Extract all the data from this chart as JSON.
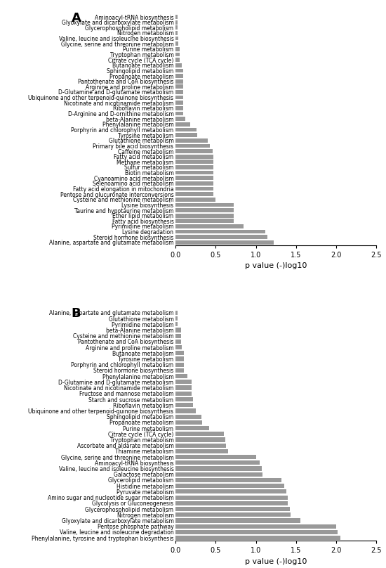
{
  "panel_A": {
    "labels": [
      "Aminoacyl-tRNA biosynthesis",
      "Glyoxylate and dicarboxylate metabolism",
      "Glycerophospholipid metabolism",
      "Nitrogen metabolism",
      "Valine, leucine and isoleucine biosynthesis",
      "Glycine, serine and threonine metabolism",
      "Purine metabolism",
      "Tryptophan metabolism",
      "Citrate cycle (TCA cycle)",
      "Butanoate metabolism",
      "Sphingolipid metabolism",
      "Propanoate metabolism",
      "Pantothenate and CoA biosynthesis",
      "Arginine and proline metabolism",
      "D-Glutamine and D-glutamate metabolism",
      "Ubiquinone and other terpenoid-quinone biosynthesis",
      "Nicotinate and nicotinamide metabolism",
      "Riboflavin metabolism",
      "D-Arginine and D-ornithine metabolism",
      "beta-Alanine metabolism",
      "Phenylalanine metabolism",
      "Porphyrin and chlorophyll metabolism",
      "Tyrosine metabolism",
      "Glutathione metabolism",
      "Primary bile acid biosynthesis",
      "Caffeine metabolism",
      "Fatty acid metabolism",
      "Methane metabolism",
      "Sulfur metabolism",
      "Biotin metabolism",
      "Cyanoamino acid metabolism",
      "Selenoamino acid metabolism",
      "Fatty acid elongation in mitochondria",
      "Pentose and glucuronate interconversions",
      "Cysteine and methionine metabolism",
      "Lysine biosynthesis",
      "Taurine and hypotaurine metabolism",
      "Ether lipid metabolism",
      "Fatty acid biosynthesis",
      "Pyrimidine metabolism",
      "Lysine degradation",
      "Steroid hormone biosynthesis",
      "Alanine, aspartate and glutamate metabolism"
    ],
    "values": [
      0.02,
      0.02,
      0.02,
      0.02,
      0.03,
      0.03,
      0.05,
      0.05,
      0.05,
      0.08,
      0.09,
      0.09,
      0.09,
      0.09,
      0.09,
      0.09,
      0.09,
      0.09,
      0.09,
      0.12,
      0.18,
      0.26,
      0.27,
      0.4,
      0.43,
      0.46,
      0.47,
      0.47,
      0.47,
      0.47,
      0.47,
      0.47,
      0.47,
      0.47,
      0.5,
      0.72,
      0.72,
      0.72,
      0.72,
      0.85,
      1.12,
      1.14,
      1.22
    ],
    "xlabel": "p value (-)log10",
    "xlim": [
      0,
      2.5
    ],
    "xticks": [
      0.0,
      0.5,
      1.0,
      1.5,
      2.0,
      2.5
    ],
    "bar_color": "#999999",
    "panel_label": "A"
  },
  "panel_B": {
    "labels": [
      "Alanine, aspartate and glutamate metabolism",
      "Glutathione metabolism",
      "Pyrimidine metabolism",
      "beta-Alanine metabolism",
      "Cysteine and methionine metabolism",
      "Pantothenate and CoA biosynthesis",
      "Arginine and proline metabolism",
      "Butanoate metabolism",
      "Tyrosine metabolism",
      "Porphyrin and chlorophyll metabolism",
      "Steroid hormone biosynthesis",
      "Phenylalanine metabolism",
      "D-Glutamine and D-glutamate metabolism",
      "Nicotinate and nicotinamide metabolism",
      "Fructose and mannose metabolism",
      "Starch and sucrose metabolism",
      "Riboflavin metabolism",
      "Ubiquinone and other terpenoid-quinone biosynthesis",
      "Sphingolipid metabolism",
      "Propanoate metabolism",
      "Purine metabolism",
      "Citrate cycle (TCA cycle)",
      "Tryptophan metabolism",
      "Ascorbate and aldarate metabolism",
      "Thiamine metabolism",
      "Glycine, serine and threonine metabolism",
      "Aminoacyl-tRNA biosynthesis",
      "Valine, leucine and isoleucine biosynthesis",
      "Galactose metabolism",
      "Glycerolipid metabolism",
      "Histidine metabolism",
      "Pyruvate metabolism",
      "Amino sugar and nucleotide sugar metabolism",
      "Glycolysis or Gluconeogenesis",
      "Glycerophospholipid metabolism",
      "Nitrogen metabolism",
      "Glyoxylate and dicarboxylate metabolism",
      "Pentose phosphate pathway",
      "Valine, leucine and isoleucine degradation",
      "Phenylalanine, tyrosine and tryptophan biosynthesis"
    ],
    "values": [
      0.02,
      0.02,
      0.02,
      0.07,
      0.07,
      0.07,
      0.08,
      0.1,
      0.1,
      0.1,
      0.1,
      0.15,
      0.2,
      0.2,
      0.2,
      0.22,
      0.22,
      0.25,
      0.32,
      0.33,
      0.42,
      0.6,
      0.62,
      0.63,
      0.65,
      1.0,
      1.05,
      1.07,
      1.08,
      1.32,
      1.35,
      1.38,
      1.4,
      1.4,
      1.42,
      1.43,
      1.55,
      2.0,
      2.02,
      2.05
    ],
    "xlabel": "p value (-)log10",
    "xlim": [
      0,
      2.5
    ],
    "xticks": [
      0.0,
      0.5,
      1.0,
      1.5,
      2.0,
      2.5
    ],
    "bar_color": "#999999",
    "panel_label": "B"
  },
  "figure_bg": "#ffffff",
  "label_fontsize": 5.5,
  "xlabel_fontsize": 8,
  "xtick_fontsize": 7,
  "panel_label_fontsize": 13,
  "bar_height": 0.75
}
